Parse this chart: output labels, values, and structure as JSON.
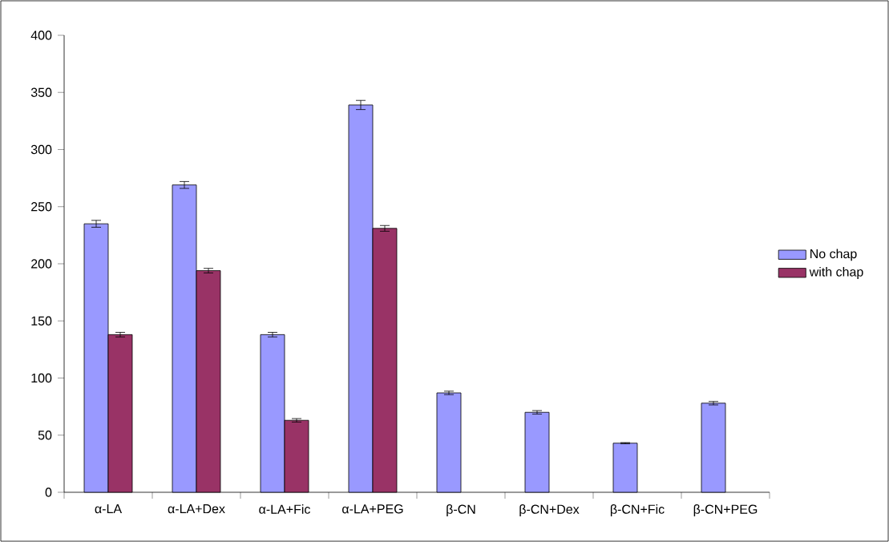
{
  "chart_data": {
    "type": "bar",
    "categories": [
      "α-LA",
      "α-LA+Dex",
      "α-LA+Fic",
      "α-LA+PEG",
      "β-CN",
      "β-CN+Dex",
      "β-CN+Fic",
      "β-CN+PEG"
    ],
    "series": [
      {
        "name": "No chap",
        "color": "#9999ff",
        "values": [
          235,
          269,
          138,
          339,
          87,
          70,
          43,
          78
        ],
        "errors": [
          3,
          3,
          2,
          4,
          1.5,
          1.5,
          0.5,
          1.5
        ]
      },
      {
        "name": "with chap",
        "color": "#993366",
        "values": [
          138,
          194,
          63,
          231,
          null,
          null,
          null,
          null
        ],
        "errors": [
          2,
          2,
          1.5,
          2.5,
          null,
          null,
          null,
          null
        ]
      }
    ],
    "ylim": [
      0,
      400
    ],
    "yticks": [
      0,
      50,
      100,
      150,
      200,
      250,
      300,
      350,
      400
    ],
    "grid": false,
    "legend": "right"
  }
}
